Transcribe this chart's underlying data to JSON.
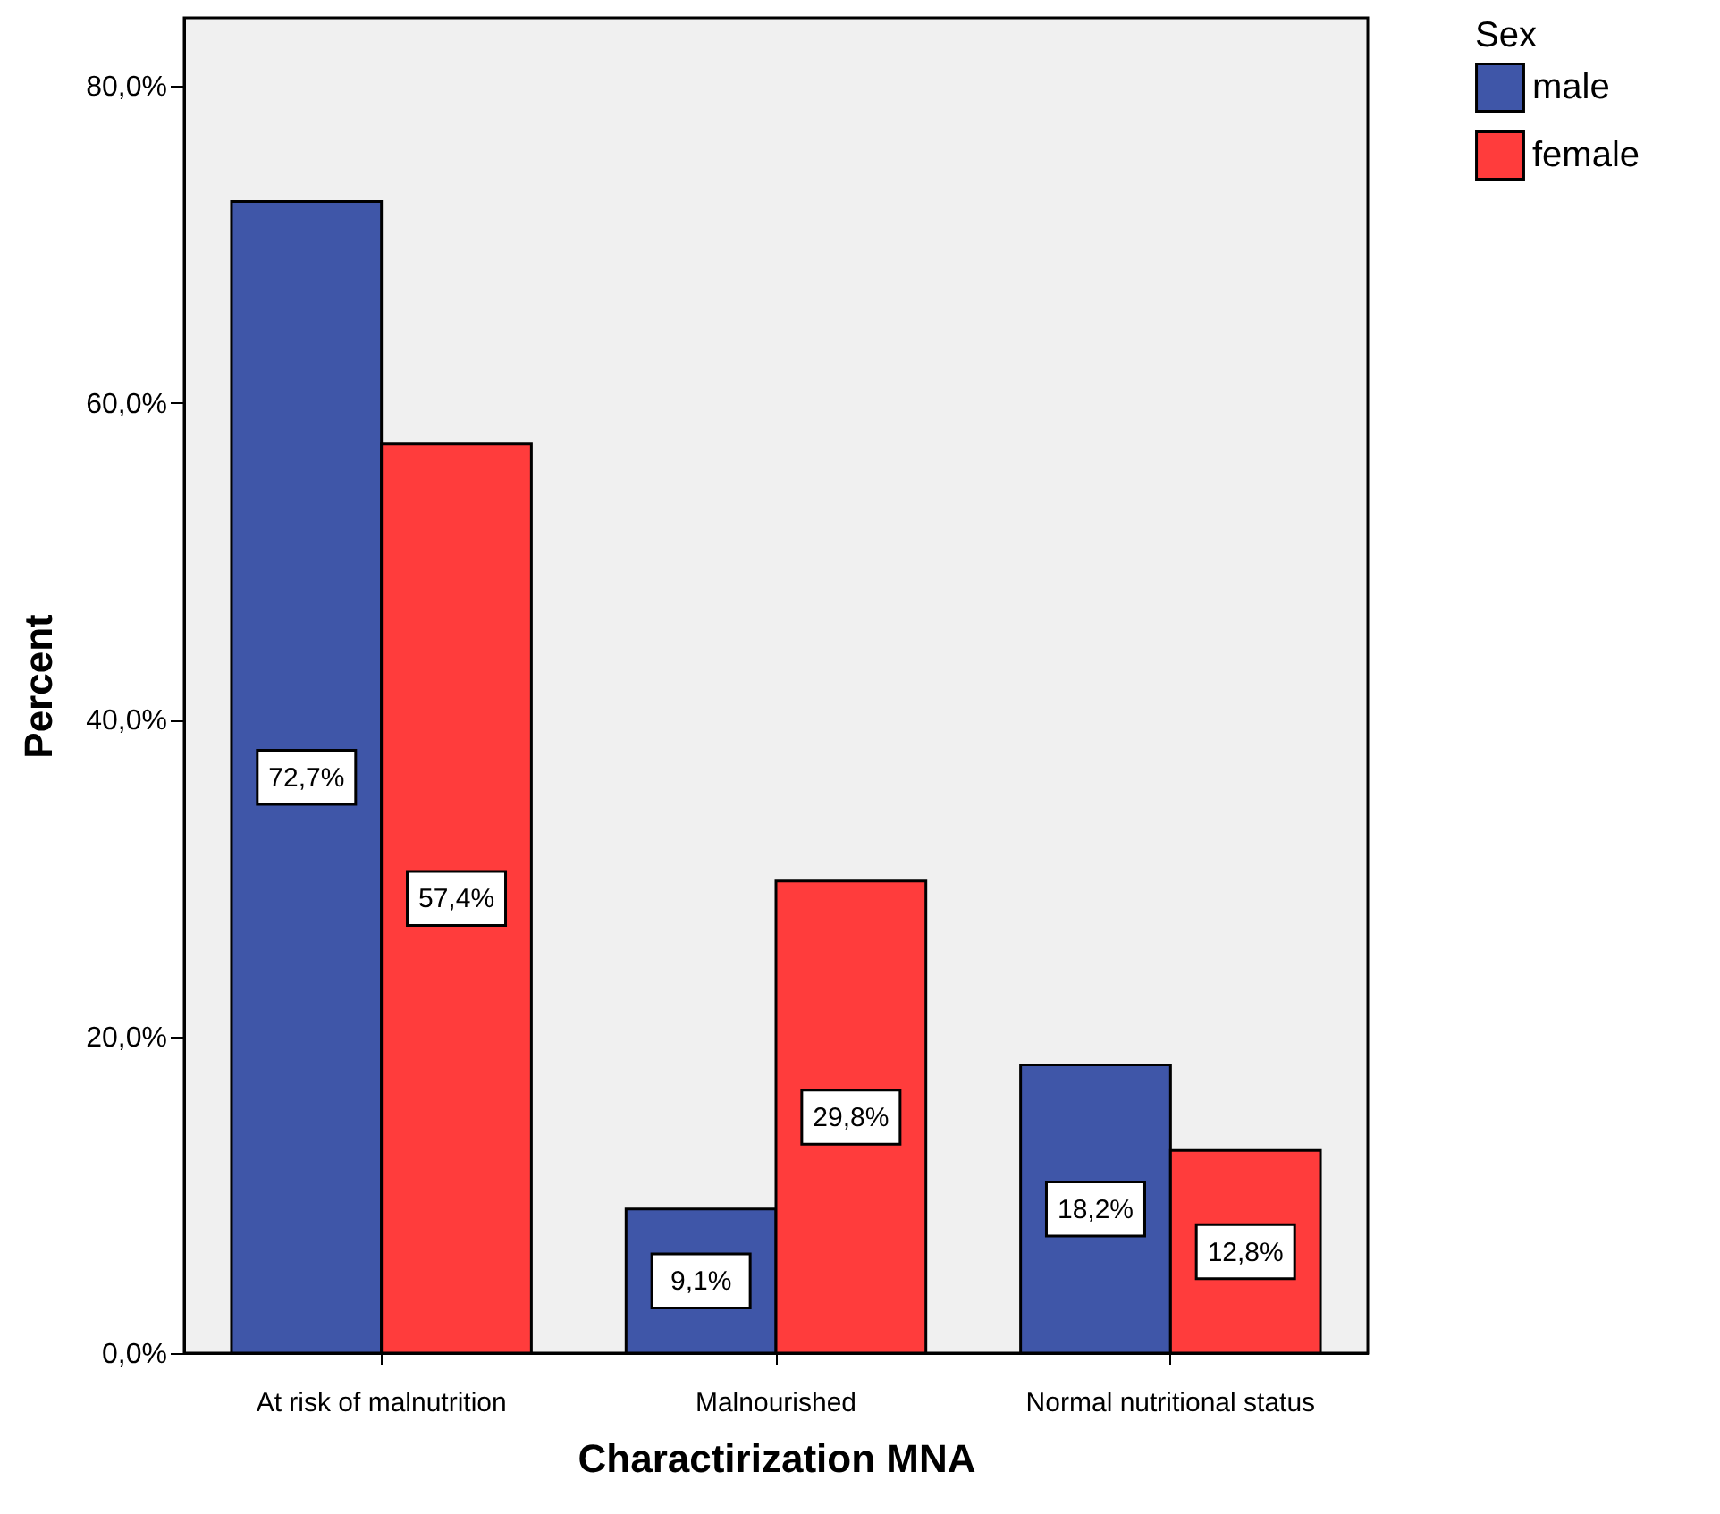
{
  "chart_data": {
    "type": "bar",
    "xlabel": "Charactirization MNA",
    "ylabel": "Percent",
    "legend_title": "Sex",
    "categories": [
      "At risk of malnutrition",
      "Malnourished",
      "Normal nutritional status"
    ],
    "series": [
      {
        "name": "male",
        "color": "#3f56a8",
        "values": [
          72.7,
          9.1,
          18.2
        ],
        "value_labels": [
          "72,7%",
          "9,1%",
          "18,2%"
        ]
      },
      {
        "name": "female",
        "color": "#ff3c3c",
        "values": [
          57.4,
          29.8,
          12.8
        ],
        "value_labels": [
          "57,4%",
          "29,8%",
          "12,8%"
        ]
      }
    ],
    "ylim": [
      0,
      84.3
    ],
    "yticks": [
      {
        "value": 0,
        "label": "0,0%"
      },
      {
        "value": 20,
        "label": "20,0%"
      },
      {
        "value": 40,
        "label": "40,0%"
      },
      {
        "value": 60,
        "label": "60,0%"
      },
      {
        "value": 80,
        "label": "80,0%"
      }
    ],
    "grid": false,
    "legend": "top right"
  }
}
